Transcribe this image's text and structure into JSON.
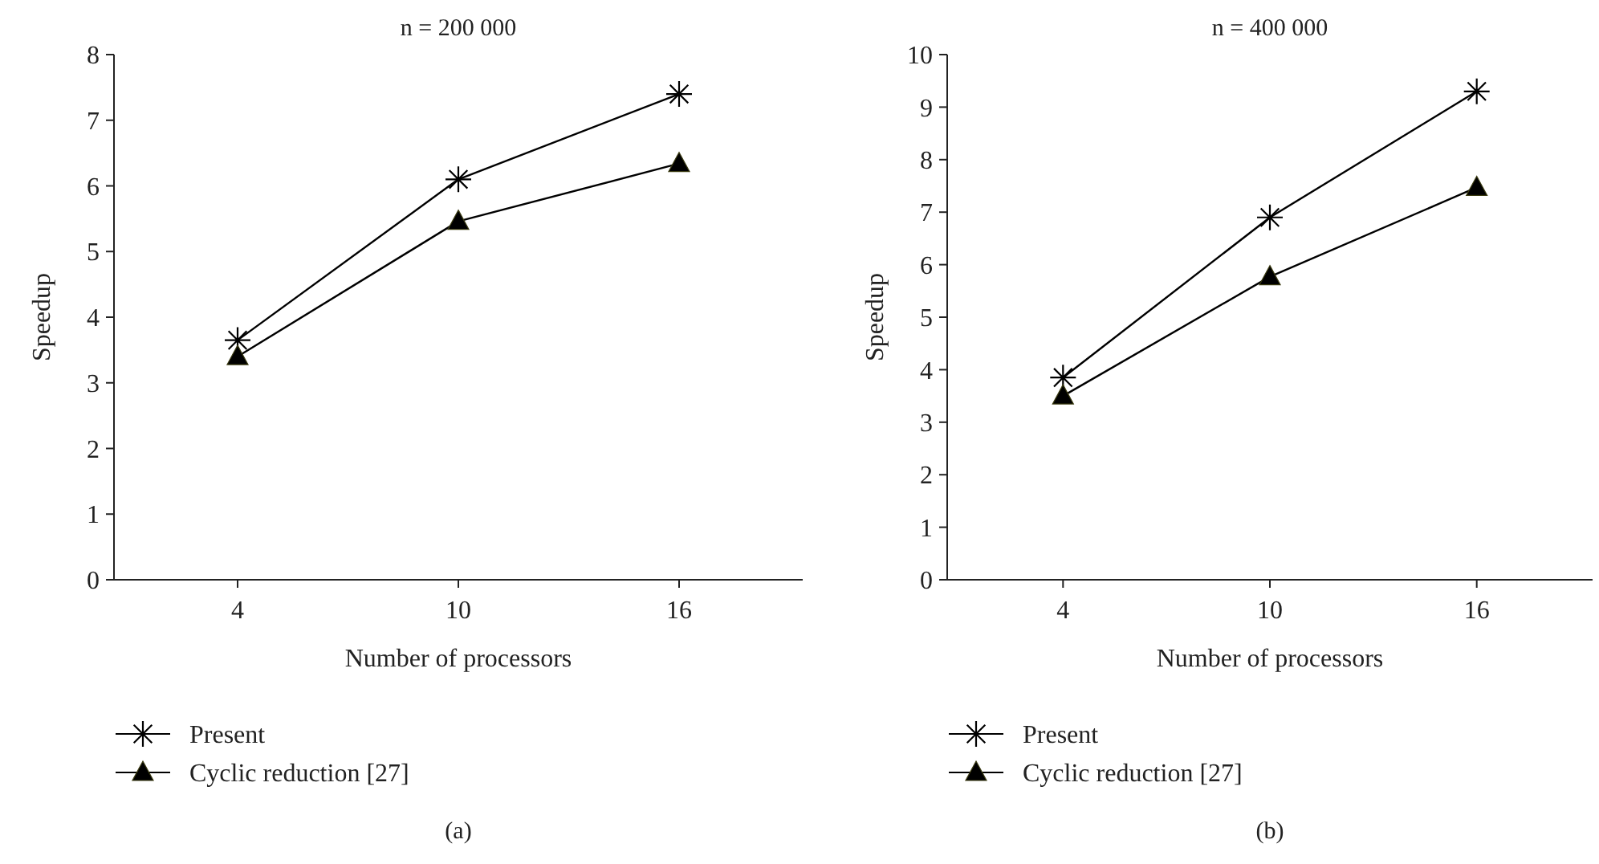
{
  "chart_data": [
    {
      "type": "line",
      "title": "n = 200 000",
      "xlabel": "Number of processors",
      "ylabel": "Speedup",
      "categories": [
        "4",
        "10",
        "16"
      ],
      "ylim": [
        0,
        8
      ],
      "yticks": [
        0,
        1,
        2,
        3,
        4,
        5,
        6,
        7,
        8
      ],
      "grid": false,
      "legend": "bottom",
      "line_style": "solid",
      "annotations": [
        "(a)"
      ],
      "series": [
        {
          "name": "Present",
          "color": "#000000",
          "marker": "cross",
          "values": [
            3.65,
            6.1,
            7.4
          ]
        },
        {
          "name": "Cyclic reduction [27]",
          "color": "#000000",
          "marker": "triangle",
          "values": [
            3.4,
            5.46,
            6.34
          ]
        }
      ]
    },
    {
      "type": "line",
      "title": "n = 400 000",
      "xlabel": "Number of processors",
      "ylabel": "Speedup",
      "categories": [
        "4",
        "10",
        "16"
      ],
      "ylim": [
        0,
        10
      ],
      "yticks": [
        0,
        1,
        2,
        3,
        4,
        5,
        6,
        7,
        8,
        9,
        10
      ],
      "grid": false,
      "legend": "bottom",
      "line_style": "solid",
      "annotations": [
        "(b)"
      ],
      "series": [
        {
          "name": "Present",
          "color": "#000000",
          "marker": "cross",
          "values": [
            3.85,
            6.9,
            9.3
          ]
        },
        {
          "name": "Cyclic reduction [27]",
          "color": "#000000",
          "marker": "triangle",
          "values": [
            3.5,
            5.77,
            7.47
          ]
        }
      ]
    }
  ]
}
